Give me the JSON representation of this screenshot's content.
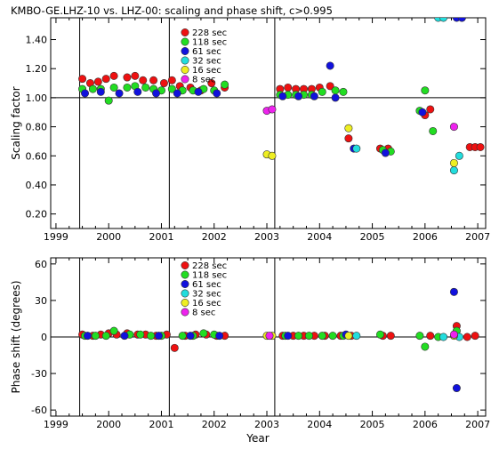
{
  "title": "KMBO-GE.LHZ-10 vs. LHZ-00: scaling and phase shift, c>0.995",
  "chart_data": [
    {
      "type": "scatter",
      "ylabel": "Scaling factor",
      "xlim": [
        1998.9,
        2007.15
      ],
      "ylim": [
        0.1,
        1.55
      ],
      "x_ticks": [
        1999,
        2000,
        2001,
        2002,
        2003,
        2004,
        2005,
        2006,
        2007
      ],
      "y_ticks": [
        0.2,
        0.4,
        0.6,
        0.8,
        1.0,
        1.2,
        1.4
      ],
      "y_tick_labels": [
        "0.20",
        "0.40",
        "0.60",
        "0.80",
        "1.00",
        "1.20",
        "1.40"
      ],
      "reference_line_y": 1.0,
      "vertical_lines_x": [
        1999.45,
        2001.15,
        2003.15
      ],
      "legend_position": "top-center",
      "series": [
        {
          "name": "228 sec",
          "color": "#ee1111",
          "points": [
            [
              1999.5,
              1.13
            ],
            [
              1999.65,
              1.1
            ],
            [
              1999.8,
              1.11
            ],
            [
              1999.95,
              1.13
            ],
            [
              2000.1,
              1.15
            ],
            [
              2000.35,
              1.14
            ],
            [
              2000.5,
              1.15
            ],
            [
              2000.65,
              1.12
            ],
            [
              2000.85,
              1.12
            ],
            [
              2001.05,
              1.1
            ],
            [
              2001.2,
              1.12
            ],
            [
              2001.35,
              1.08
            ],
            [
              2001.55,
              1.07
            ],
            [
              2001.75,
              1.05
            ],
            [
              2001.95,
              1.1
            ],
            [
              2002.2,
              1.07
            ],
            [
              2003.25,
              1.06
            ],
            [
              2003.4,
              1.07
            ],
            [
              2003.55,
              1.06
            ],
            [
              2003.7,
              1.06
            ],
            [
              2003.85,
              1.06
            ],
            [
              2004.0,
              1.07
            ],
            [
              2004.2,
              1.08
            ],
            [
              2004.55,
              0.72
            ],
            [
              2005.15,
              0.65
            ],
            [
              2005.3,
              0.65
            ],
            [
              2006.0,
              0.88
            ],
            [
              2006.1,
              0.92
            ],
            [
              2006.7,
              1.55
            ],
            [
              2006.85,
              0.66
            ],
            [
              2006.95,
              0.66
            ],
            [
              2007.05,
              0.66
            ]
          ]
        },
        {
          "name": "118 sec",
          "color": "#22dd22",
          "points": [
            [
              1999.5,
              1.06
            ],
            [
              1999.7,
              1.06
            ],
            [
              1999.85,
              1.06
            ],
            [
              2000.0,
              0.98
            ],
            [
              2000.1,
              1.07
            ],
            [
              2000.35,
              1.07
            ],
            [
              2000.5,
              1.08
            ],
            [
              2000.7,
              1.07
            ],
            [
              2000.85,
              1.06
            ],
            [
              2001.0,
              1.05
            ],
            [
              2001.2,
              1.06
            ],
            [
              2001.4,
              1.05
            ],
            [
              2001.6,
              1.05
            ],
            [
              2001.8,
              1.06
            ],
            [
              2002.0,
              1.05
            ],
            [
              2002.2,
              1.09
            ],
            [
              2003.25,
              1.02
            ],
            [
              2003.4,
              1.02
            ],
            [
              2003.55,
              1.02
            ],
            [
              2003.7,
              1.02
            ],
            [
              2003.85,
              1.02
            ],
            [
              2004.05,
              1.04
            ],
            [
              2004.3,
              1.05
            ],
            [
              2004.45,
              1.04
            ],
            [
              2005.2,
              0.64
            ],
            [
              2005.35,
              0.63
            ],
            [
              2005.9,
              0.91
            ],
            [
              2006.0,
              1.05
            ],
            [
              2006.15,
              0.77
            ]
          ]
        },
        {
          "name": "61 sec",
          "color": "#1111dd",
          "points": [
            [
              1999.55,
              1.03
            ],
            [
              1999.85,
              1.04
            ],
            [
              2000.2,
              1.03
            ],
            [
              2000.55,
              1.04
            ],
            [
              2000.9,
              1.03
            ],
            [
              2001.3,
              1.03
            ],
            [
              2001.7,
              1.04
            ],
            [
              2002.05,
              1.03
            ],
            [
              2003.3,
              1.01
            ],
            [
              2003.6,
              1.01
            ],
            [
              2003.9,
              1.01
            ],
            [
              2004.2,
              1.22
            ],
            [
              2004.3,
              1.0
            ],
            [
              2004.65,
              0.65
            ],
            [
              2005.25,
              0.62
            ],
            [
              2005.95,
              0.9
            ],
            [
              2006.6,
              1.55
            ],
            [
              2006.7,
              1.55
            ]
          ]
        },
        {
          "name": "32 sec",
          "color": "#22dddd",
          "points": [
            [
              2004.7,
              0.65
            ],
            [
              2006.25,
              1.55
            ],
            [
              2006.35,
              1.55
            ],
            [
              2006.55,
              0.5
            ],
            [
              2006.65,
              0.6
            ]
          ]
        },
        {
          "name": "16 sec",
          "color": "#eeee22",
          "points": [
            [
              2003.0,
              0.61
            ],
            [
              2003.1,
              0.6
            ],
            [
              2004.55,
              0.79
            ],
            [
              2006.55,
              0.55
            ]
          ]
        },
        {
          "name": "8 sec",
          "color": "#ee22ee",
          "points": [
            [
              2003.0,
              0.91
            ],
            [
              2003.1,
              0.92
            ],
            [
              2006.55,
              0.8
            ]
          ]
        }
      ]
    },
    {
      "type": "scatter",
      "xlabel": "Year",
      "ylabel": "Phase shift (degrees)",
      "xlim": [
        1998.9,
        2007.15
      ],
      "ylim": [
        -65,
        65
      ],
      "x_ticks": [
        1999,
        2000,
        2001,
        2002,
        2003,
        2004,
        2005,
        2006,
        2007
      ],
      "y_ticks": [
        -60,
        -30,
        0,
        30,
        60
      ],
      "y_tick_labels": [
        "-60",
        "-30",
        "0",
        "30",
        "60"
      ],
      "reference_line_y": 0,
      "vertical_lines_x": [
        1999.45,
        2001.15,
        2003.15
      ],
      "legend_position": "top-center",
      "series": [
        {
          "name": "228 sec",
          "color": "#ee1111",
          "points": [
            [
              1999.5,
              2
            ],
            [
              1999.7,
              1
            ],
            [
              1999.85,
              2
            ],
            [
              2000.0,
              3
            ],
            [
              2000.15,
              2
            ],
            [
              2000.35,
              3
            ],
            [
              2000.55,
              2
            ],
            [
              2000.7,
              2
            ],
            [
              2000.9,
              1
            ],
            [
              2001.1,
              2
            ],
            [
              2001.25,
              -9
            ],
            [
              2001.45,
              1
            ],
            [
              2001.65,
              2
            ],
            [
              2001.85,
              2
            ],
            [
              2002.05,
              1
            ],
            [
              2002.2,
              1
            ],
            [
              2003.3,
              1
            ],
            [
              2003.5,
              1
            ],
            [
              2003.7,
              1
            ],
            [
              2003.9,
              1
            ],
            [
              2004.1,
              1
            ],
            [
              2004.4,
              1
            ],
            [
              2004.6,
              1
            ],
            [
              2005.2,
              1
            ],
            [
              2005.35,
              1
            ],
            [
              2006.1,
              1
            ],
            [
              2006.6,
              9
            ],
            [
              2006.8,
              0
            ],
            [
              2006.95,
              1
            ]
          ]
        },
        {
          "name": "118 sec",
          "color": "#22dd22",
          "points": [
            [
              1999.55,
              1
            ],
            [
              1999.75,
              1
            ],
            [
              1999.95,
              1
            ],
            [
              2000.1,
              5
            ],
            [
              2000.4,
              2
            ],
            [
              2000.6,
              2
            ],
            [
              2000.8,
              1
            ],
            [
              2001.0,
              1
            ],
            [
              2001.4,
              1
            ],
            [
              2001.6,
              1
            ],
            [
              2001.8,
              3
            ],
            [
              2002.0,
              2
            ],
            [
              2003.35,
              1
            ],
            [
              2003.6,
              1
            ],
            [
              2003.8,
              1
            ],
            [
              2004.05,
              1
            ],
            [
              2004.25,
              1
            ],
            [
              2004.45,
              1
            ],
            [
              2005.15,
              2
            ],
            [
              2005.9,
              1
            ],
            [
              2006.0,
              -8
            ],
            [
              2006.25,
              0
            ],
            [
              2006.6,
              5
            ]
          ]
        },
        {
          "name": "61 sec",
          "color": "#1111dd",
          "points": [
            [
              1999.6,
              1
            ],
            [
              2000.3,
              1
            ],
            [
              2000.95,
              1
            ],
            [
              2001.55,
              1
            ],
            [
              2002.1,
              1
            ],
            [
              2003.4,
              1
            ],
            [
              2004.5,
              2
            ],
            [
              2006.6,
              -42
            ],
            [
              2006.55,
              37
            ]
          ]
        },
        {
          "name": "32 sec",
          "color": "#22dddd",
          "points": [
            [
              2004.7,
              1
            ],
            [
              2006.35,
              0
            ],
            [
              2006.65,
              0
            ]
          ]
        },
        {
          "name": "16 sec",
          "color": "#eeee22",
          "points": [
            [
              2003.0,
              1
            ],
            [
              2003.1,
              1
            ],
            [
              2004.55,
              1
            ],
            [
              2006.55,
              1
            ]
          ]
        },
        {
          "name": "8 sec",
          "color": "#ee22ee",
          "points": [
            [
              2003.05,
              1
            ],
            [
              2006.55,
              2
            ]
          ]
        }
      ]
    }
  ]
}
